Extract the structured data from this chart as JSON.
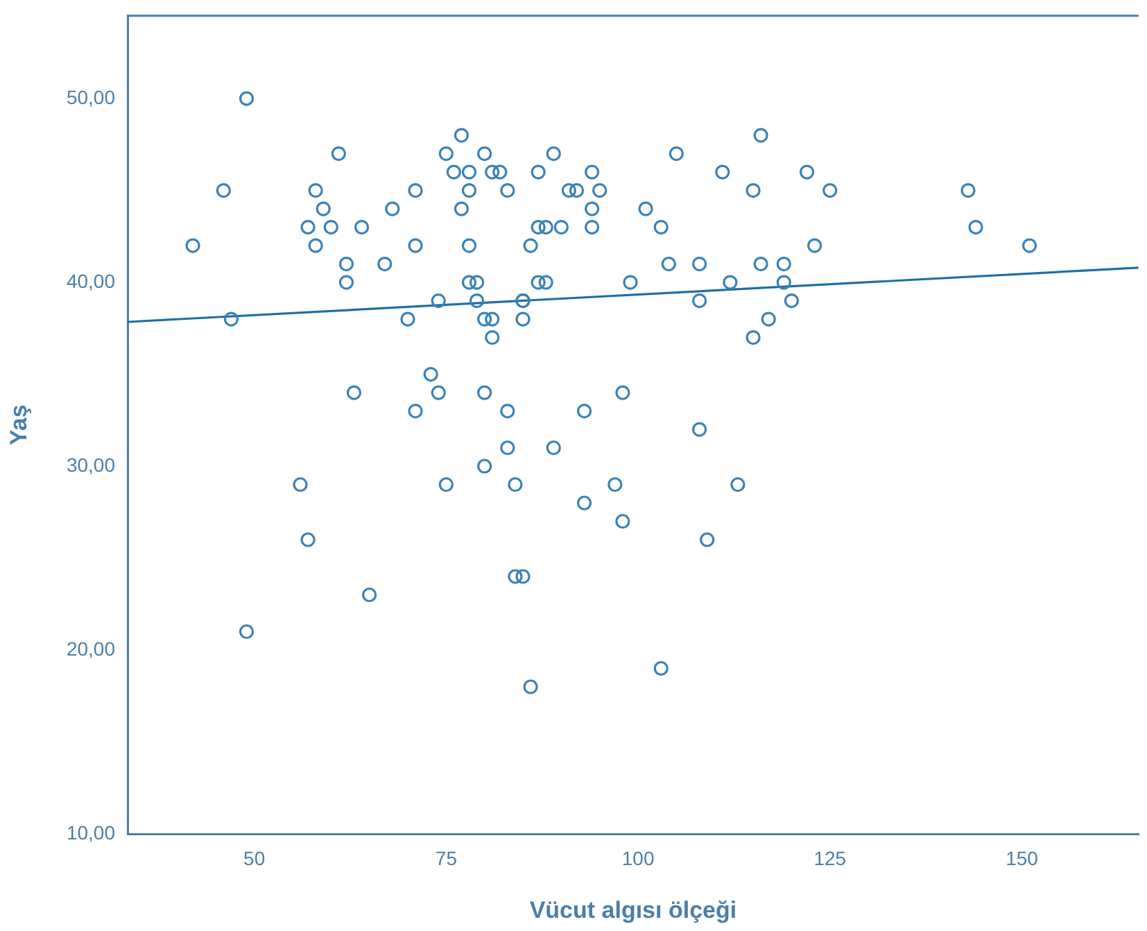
{
  "chart_data": {
    "type": "scatter",
    "xlabel": "Vücut algısı ölçeği",
    "ylabel": "Yaş",
    "xlim": [
      33.5,
      165.2
    ],
    "xticks": [
      50,
      75,
      100,
      125,
      150
    ],
    "ylim": [
      10,
      54.5
    ],
    "yticks": [
      {
        "value": 10,
        "label": "10,00"
      },
      {
        "value": 20,
        "label": "20,00"
      },
      {
        "value": 30,
        "label": "30,00"
      },
      {
        "value": 40,
        "label": "40,00"
      },
      {
        "value": 50,
        "label": "50,00"
      }
    ],
    "grid": false,
    "legend": false,
    "marker": "circle",
    "series": [
      {
        "color": "#3a82b6",
        "x": [
          49,
          77,
          116,
          61,
          75,
          80,
          89,
          105,
          76,
          78,
          81,
          82,
          87,
          94,
          111,
          122,
          46,
          58,
          71,
          78,
          83,
          91,
          92,
          95,
          115,
          125,
          143,
          59,
          68,
          77,
          94,
          101,
          57,
          60,
          64,
          87,
          88,
          90,
          94,
          103,
          144,
          42,
          58,
          71,
          78,
          86,
          123,
          151,
          62,
          67,
          104,
          108,
          116,
          119,
          62,
          78,
          79,
          87,
          88,
          99,
          112,
          119,
          74,
          79,
          85,
          85,
          108,
          120,
          47,
          70,
          80,
          81,
          85,
          117,
          81,
          115,
          73,
          63,
          74,
          80,
          98,
          71,
          83,
          93,
          108,
          83,
          89,
          80,
          56,
          75,
          84,
          97,
          113,
          93,
          98,
          57,
          109,
          84,
          85,
          65,
          49,
          103,
          86
        ],
        "values": [
          50,
          48,
          48,
          47,
          47,
          47,
          47,
          47,
          46,
          46,
          46,
          46,
          46,
          46,
          46,
          46,
          45,
          45,
          45,
          45,
          45,
          45,
          45,
          45,
          45,
          45,
          45,
          44,
          44,
          44,
          44,
          44,
          43,
          43,
          43,
          43,
          43,
          43,
          43,
          43,
          43,
          42,
          42,
          42,
          42,
          42,
          42,
          42,
          41,
          41,
          41,
          41,
          41,
          41,
          40,
          40,
          40,
          40,
          40,
          40,
          40,
          40,
          39,
          39,
          39,
          39,
          39,
          39,
          38,
          38,
          38,
          38,
          38,
          38,
          37,
          37,
          35,
          34,
          34,
          34,
          34,
          33,
          33,
          33,
          32,
          31,
          31,
          30,
          29,
          29,
          29,
          29,
          29,
          28,
          27,
          26,
          26,
          24,
          24,
          23,
          21,
          19,
          18
        ]
      },
      {
        "type": "line",
        "color": "#1f6ea6",
        "marker": "none",
        "x": [
          33.5,
          165.2
        ],
        "values": [
          37.85,
          40.8
        ]
      }
    ]
  }
}
